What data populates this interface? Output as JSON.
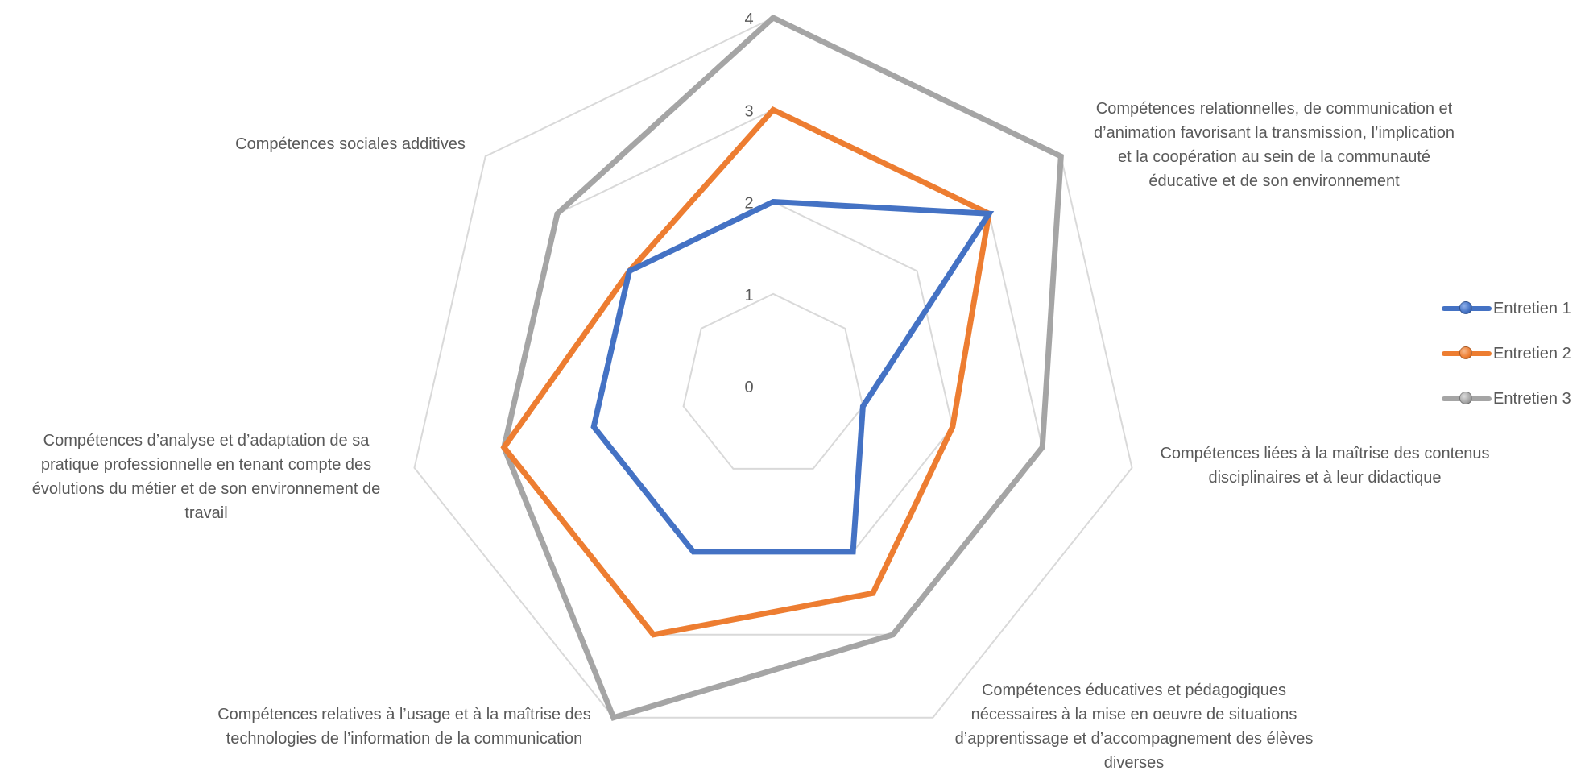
{
  "chart_data": {
    "type": "radar",
    "title": "",
    "categories": [
      "",
      "Compétences relationnelles, de communication et\nd’animation favorisant la transmission, l’implication\net la coopération au sein de la communauté\néducative et de son environnement",
      "Compétences liées à la maîtrise des contenus\ndisciplinaires et à leur didactique",
      "Compétences éducatives et pédagogiques\nnécessaires à la mise en oeuvre de situations\nd’apprentissage et d’accompagnement des élèves\ndiverses",
      "Compétences relatives à l’usage et à la maîtrise des\ntechnologies de l’information de la communication",
      "Compétences d’analyse et d’adaptation de sa\npratique professionnelle en tenant compte des\névolutions du métier et de son environnement de\ntravail",
      "Compétences sociales additives"
    ],
    "axis": {
      "min": 0,
      "max": 4,
      "ticks": [
        "0",
        "1",
        "2",
        "3",
        "4"
      ],
      "grid": true
    },
    "legend_position": "right",
    "series": [
      {
        "name": "Entretien 1",
        "color": "#4472C4",
        "values": [
          2,
          3,
          1,
          2,
          2,
          2,
          2
        ]
      },
      {
        "name": "Entretien 2",
        "color": "#ED7D31",
        "values": [
          3,
          3,
          2,
          2.5,
          3,
          3,
          2
        ]
      },
      {
        "name": "Entretien 3",
        "color": "#A5A5A5",
        "values": [
          4,
          4,
          3,
          3,
          4,
          3,
          3
        ]
      }
    ]
  }
}
